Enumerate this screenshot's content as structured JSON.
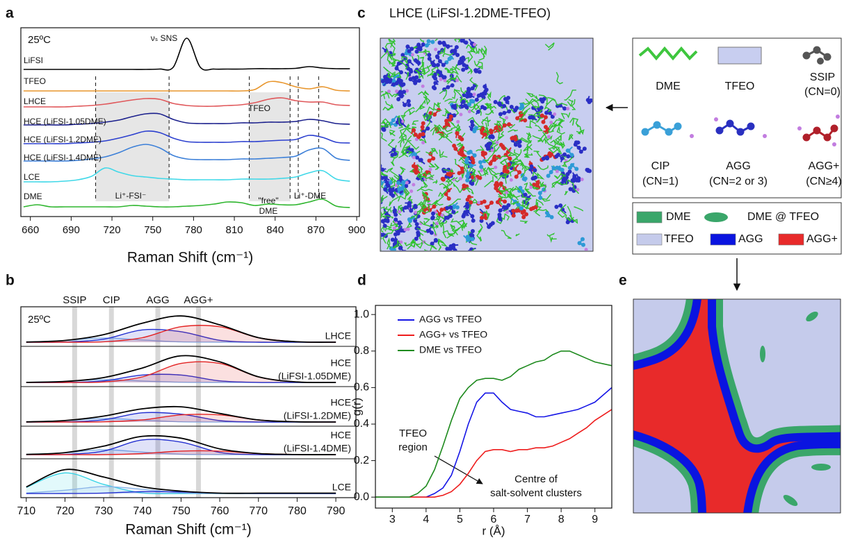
{
  "chart_data": [
    {
      "type": "line",
      "label": "a",
      "annotation": "25ºC",
      "x": [
        655,
        665,
        675,
        685,
        695,
        705,
        715,
        725,
        735,
        745,
        755,
        765,
        775,
        785,
        795,
        805,
        815,
        825,
        835,
        845,
        855,
        865,
        875,
        885,
        895
      ],
      "xlim": [
        653,
        902
      ],
      "xticks": [
        660,
        690,
        720,
        750,
        780,
        810,
        840,
        870,
        900
      ],
      "xlabel": "Raman Shift (cm⁻¹)",
      "shaded_ranges": [
        [
          708,
          762
        ],
        [
          821,
          851
        ]
      ],
      "dashed_lines": [
        857,
        872
      ],
      "annotations": [
        {
          "text": "νₛ SNS"
        },
        {
          "text": "TFEO"
        },
        {
          "text": "Li⁺-FSI⁻"
        },
        {
          "lines": [
            "\"free\"",
            "DME"
          ]
        },
        {
          "text": "Li⁺-DME"
        }
      ],
      "series": [
        {
          "name": "LiFSI",
          "color": "#000000",
          "values": [
            0,
            0,
            0,
            0,
            0,
            0,
            0,
            0,
            0,
            0,
            0.05,
            0.3,
            4.5,
            0.3,
            0.05,
            0.05,
            0.05,
            0.1,
            0.1,
            0.1,
            0.15,
            0.4,
            0.2,
            0.1,
            0.1
          ]
        },
        {
          "name": "TFEO",
          "color": "#e8952b",
          "values": [
            0,
            0,
            0,
            0,
            0,
            0,
            0,
            0,
            0,
            0,
            0,
            0,
            0,
            0,
            0,
            0,
            0,
            0.2,
            1.3,
            1.2,
            0.6,
            0.3,
            0.6,
            0.1,
            0
          ]
        },
        {
          "name": "LHCE",
          "color": "#e0575a",
          "values": [
            0.1,
            0.1,
            0.1,
            0.1,
            0.2,
            0.3,
            0.5,
            0.8,
            1.1,
            1.3,
            1.2,
            0.6,
            0.3,
            0.2,
            0.2,
            0.3,
            0.4,
            0.7,
            1.2,
            1.4,
            1.0,
            0.8,
            0.8,
            0.4,
            0.3
          ]
        },
        {
          "name": "HCE (LiFSI-1.05DME)",
          "color": "#1a1f8c",
          "values": [
            0,
            0,
            0,
            0,
            0.1,
            0.2,
            0.4,
            0.7,
            1.2,
            1.6,
            1.6,
            0.8,
            0.3,
            0.2,
            0.2,
            0.2,
            0.3,
            0.3,
            0.4,
            0.4,
            0.5,
            0.8,
            0.6,
            0.2,
            0.1
          ]
        },
        {
          "name": "HCE (LiFSI-1.2DME)",
          "color": "#2b3fcf",
          "values": [
            0,
            0,
            0,
            0,
            0.1,
            0.2,
            0.4,
            0.8,
            1.3,
            1.8,
            1.6,
            0.8,
            0.3,
            0.2,
            0.2,
            0.2,
            0.3,
            0.3,
            0.4,
            0.5,
            0.6,
            1.2,
            0.9,
            0.2,
            0.1
          ]
        },
        {
          "name": "HCE (LiFSI-1.4DME)",
          "color": "#3b7fd8",
          "values": [
            0,
            0,
            0,
            0,
            0.1,
            0.3,
            0.6,
            1.2,
            2.0,
            2.4,
            1.9,
            0.8,
            0.3,
            0.2,
            0.2,
            0.2,
            0.3,
            0.3,
            0.4,
            0.5,
            0.7,
            1.6,
            1.8,
            0.4,
            0.1
          ]
        },
        {
          "name": "LCE",
          "color": "#3fd8e8",
          "values": [
            0,
            0,
            0,
            0.1,
            0.3,
            0.8,
            2.0,
            1.4,
            0.9,
            0.7,
            0.5,
            0.4,
            0.3,
            0.3,
            0.3,
            0.3,
            0.4,
            0.4,
            0.4,
            0.5,
            0.7,
            1.3,
            1.6,
            0.4,
            0.1
          ]
        },
        {
          "name": "DME",
          "color": "#2db52d",
          "values": [
            0.2,
            0.5,
            0.2,
            0.2,
            0.2,
            0.2,
            0.2,
            0.2,
            0.4,
            0.3,
            0.2,
            0.2,
            0.3,
            0.4,
            0.6,
            0.9,
            0.8,
            0.4,
            0.6,
            0.5,
            0.5,
            0.9,
            1.3,
            0.3,
            0.1
          ]
        }
      ]
    },
    {
      "type": "fits",
      "label": "b",
      "annotation": "25ºC",
      "x": [
        710,
        720,
        730,
        740,
        750,
        760,
        770,
        780,
        790
      ],
      "xlim": [
        708.6,
        795.2
      ],
      "xticks": [
        710,
        720,
        730,
        740,
        750,
        760,
        770,
        780,
        790
      ],
      "xlabel": "Raman Shift (cm⁻¹)",
      "markers": [
        {
          "label": "SSIP",
          "value": 722.5
        },
        {
          "label": "CIP",
          "value": 732
        },
        {
          "label": "AGG",
          "value": 744
        },
        {
          "label": "AGG+",
          "value": 754.5
        }
      ],
      "colors": {
        "total": "#000000",
        "SSIP": "#35d3e6",
        "CIP": "#8ab4e8",
        "AGG": "#2430d0",
        "AGG+": "#e32222"
      },
      "samples": [
        {
          "label": [
            "LHCE"
          ],
          "total": [
            0.02,
            0.25,
            1.09,
            2.74,
            3.78,
            2.5,
            0.65,
            0.06,
            0
          ],
          "fits": {
            "CIP": [
              0.02,
              0.23,
              0.6,
              0.32,
              0.04,
              0,
              0,
              0,
              0
            ],
            "AGG": [
              0,
              0.02,
              0.43,
              1.77,
              1.51,
              0.27,
              0,
              0,
              0
            ],
            "AGG+": [
              0,
              0,
              0.06,
              0.65,
              2.23,
              2.23,
              0.65,
              0.06,
              0
            ]
          }
        },
        {
          "label": [
            "HCE",
            "(LiFSI-1.05DME)"
          ],
          "total": [
            0.01,
            0.15,
            0.7,
            2.08,
            3.84,
            2.97,
            0.81,
            0.07,
            0
          ],
          "fits": {
            "CIP": [
              0.01,
              0.15,
              0.4,
              0.21,
              0.03,
              0,
              0,
              0,
              0
            ],
            "AGG": [
              0,
              0,
              0.23,
              1.07,
              1.07,
              0.23,
              0.01,
              0,
              0
            ],
            "AGG+": [
              0,
              0,
              0.07,
              0.8,
              2.74,
              2.74,
              0.8,
              0.07,
              0
            ]
          }
        },
        {
          "label": [
            "HCE",
            "(LiFSI-1.2DME)"
          ],
          "total": [
            0.02,
            0.21,
            0.85,
            1.9,
            2.19,
            1.23,
            0.3,
            0.03,
            0
          ],
          "fits": {
            "CIP": [
              0.02,
              0.19,
              0.5,
              0.27,
              0.03,
              0,
              0,
              0,
              0
            ],
            "AGG": [
              0,
              0.02,
              0.32,
              1.33,
              1.13,
              0.2,
              0,
              0,
              0
            ],
            "AGG+": [
              0,
              0,
              0.03,
              0.3,
              1.03,
              1.03,
              0.3,
              0.03,
              0
            ]
          }
        },
        {
          "label": [
            "HCE",
            "(LiFSI-1.4DME)"
          ],
          "total": [
            0.03,
            0.29,
            1.22,
            2.64,
            2.37,
            0.83,
            0.16,
            0.01,
            0
          ],
          "fits": {
            "CIP": [
              0.03,
              0.26,
              0.7,
              0.37,
              0.05,
              0,
              0,
              0,
              0
            ],
            "AGG": [
              0,
              0.03,
              0.52,
              2.12,
              1.81,
              0.32,
              0.01,
              0,
              0
            ],
            "AGG+": [
              0,
              0,
              0,
              0.15,
              0.51,
              0.51,
              0.15,
              0.01,
              0
            ]
          }
        },
        {
          "label": [
            "LCE"
          ],
          "total": [
            0.94,
            3.44,
            2.37,
            0.96,
            0.34,
            0.05,
            0.05,
            0.05,
            0.05
          ],
          "fits": {
            "SSIP": [
              0.87,
              2.97,
              1.32,
              0.08,
              0,
              0,
              0,
              0,
              0
            ],
            "CIP": [
              0.07,
              0.47,
              0.99,
              0.61,
              0.11,
              0.01,
              0,
              0,
              0
            ],
            "AGG": [
              0,
              0,
              0.06,
              0.27,
              0.23,
              0.04,
              0,
              0,
              0
            ]
          }
        }
      ]
    },
    {
      "type": "line",
      "label": "d",
      "x": [
        2.5,
        2.75,
        3,
        3.25,
        3.5,
        3.75,
        4,
        4.25,
        4.5,
        4.75,
        5,
        5.25,
        5.5,
        5.75,
        6,
        6.25,
        6.5,
        6.75,
        7,
        7.25,
        7.5,
        7.75,
        8,
        8.25,
        8.5,
        8.75,
        9,
        9.25,
        9.5
      ],
      "xlim": [
        2.5,
        9.5
      ],
      "ylim": [
        -0.06,
        1.05
      ],
      "xticks": [
        3,
        4,
        5,
        6,
        7,
        8,
        9
      ],
      "yticks": [
        {
          "value": 0,
          "label": "0.0"
        },
        0.2,
        0.4,
        0.6,
        0.8,
        {
          "value": 1,
          "label": "1.0"
        }
      ],
      "xlabel": "r (Å)",
      "ylabel": "g(r)",
      "annotations": [
        {
          "lines": [
            "TFEO",
            "region"
          ]
        },
        {
          "lines": [
            "Centre of",
            "salt-solvent clusters"
          ]
        }
      ],
      "series": [
        {
          "name": "AGG vs TFEO",
          "color": "#1515e6",
          "values": [
            0,
            0,
            0,
            0,
            0,
            0,
            0,
            0.02,
            0.05,
            0.12,
            0.25,
            0.4,
            0.52,
            0.57,
            0.57,
            0.52,
            0.48,
            0.47,
            0.46,
            0.44,
            0.44,
            0.45,
            0.46,
            0.47,
            0.48,
            0.5,
            0.52,
            0.56,
            0.6
          ]
        },
        {
          "name": "AGG+ vs TFEO",
          "color": "#ee1c1c",
          "values": [
            0,
            0,
            0,
            0,
            0,
            0,
            0,
            0,
            0.01,
            0.03,
            0.07,
            0.13,
            0.2,
            0.25,
            0.26,
            0.26,
            0.25,
            0.26,
            0.26,
            0.27,
            0.27,
            0.28,
            0.3,
            0.32,
            0.35,
            0.38,
            0.42,
            0.45,
            0.48
          ]
        },
        {
          "name": "DME vs TFEO",
          "color": "#1d8a1d",
          "values": [
            0,
            0,
            0,
            0,
            0,
            0.02,
            0.06,
            0.15,
            0.28,
            0.42,
            0.54,
            0.6,
            0.64,
            0.65,
            0.65,
            0.64,
            0.66,
            0.7,
            0.72,
            0.74,
            0.75,
            0.78,
            0.8,
            0.8,
            0.78,
            0.76,
            0.74,
            0.73,
            0.72
          ]
        }
      ]
    }
  ],
  "panel_c": {
    "label": "c",
    "title": "LHCE (LiFSI-1.2DME-TFEO)",
    "legend": [
      {
        "name": "DME"
      },
      {
        "name": "TFEO"
      },
      {
        "name": "SSIP",
        "note": "(CN=0)"
      },
      {
        "name": "CIP",
        "note": "(CN=1)"
      },
      {
        "name": "AGG",
        "note": "(CN=2 or 3)"
      },
      {
        "name": "AGG+",
        "note": "(CN≥4)"
      }
    ]
  },
  "panel_e": {
    "label": "e",
    "legend": [
      {
        "name": "DME",
        "color": "#3aa66a"
      },
      {
        "name": "DME @ TFEO",
        "color": "#3aa66a"
      },
      {
        "name": "TFEO",
        "color": "#c5cbeb"
      },
      {
        "name": "AGG",
        "color": "#0a14e0"
      },
      {
        "name": "AGG+",
        "color": "#e82a2a"
      }
    ]
  }
}
